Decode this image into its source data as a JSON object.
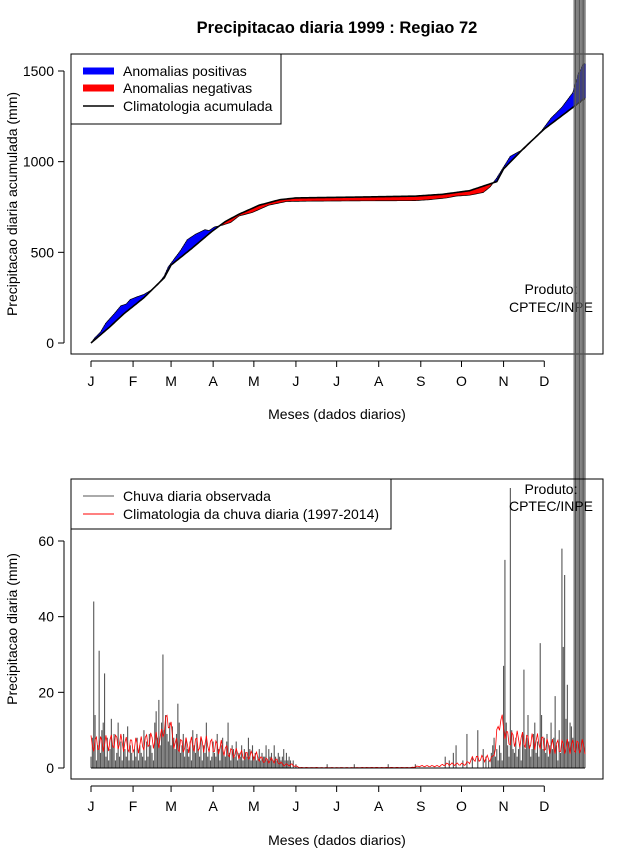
{
  "colors": {
    "positive": "#0000ff",
    "negative": "#ff0000",
    "climatology": "#000000",
    "observed": "#555555",
    "clim_daily": "#ff0000"
  },
  "chart_data": [
    {
      "type": "area",
      "title": "Precipitacao diaria 1999 : Regiao 72",
      "xlabel": "Meses (dados diarios)",
      "ylabel": "Precipitacao diaria acumulada (mm)",
      "x_ticks": [
        "J",
        "F",
        "M",
        "A",
        "M",
        "J",
        "J",
        "A",
        "S",
        "O",
        "N",
        "D"
      ],
      "x_tick_days": [
        1,
        32,
        60,
        91,
        121,
        152,
        182,
        213,
        244,
        274,
        305,
        335
      ],
      "xlim": [
        1,
        365
      ],
      "ylim": [
        0,
        1550
      ],
      "y_ticks": [
        0,
        500,
        1000,
        1500
      ],
      "legend": [
        "Anomalias positivas",
        "Anomalias negativas",
        "Climatologia acumulada"
      ],
      "annotation": [
        "Produto:",
        "CPTEC/INPE"
      ],
      "clim_day": [
        1,
        15,
        25,
        40,
        55,
        60,
        75,
        90,
        100,
        110,
        125,
        140,
        152,
        170,
        200,
        240,
        260,
        280,
        300,
        305,
        320,
        335,
        350,
        365
      ],
      "clim_value": [
        0,
        90,
        160,
        250,
        360,
        430,
        520,
        615,
        670,
        710,
        760,
        790,
        800,
        802,
        805,
        810,
        820,
        840,
        890,
        960,
        1075,
        1180,
        1265,
        1350
      ],
      "observed_day": [
        1,
        4,
        8,
        12,
        18,
        23,
        27,
        30,
        35,
        40,
        45,
        50,
        55,
        58,
        62,
        67,
        72,
        78,
        85,
        88,
        92,
        98,
        104,
        110,
        120,
        132,
        145,
        160,
        200,
        240,
        250,
        263,
        270,
        280,
        290,
        295,
        300,
        305,
        310,
        320,
        333,
        340,
        348,
        352,
        356,
        360,
        364
      ],
      "observed_value": [
        0,
        30,
        60,
        110,
        160,
        205,
        215,
        240,
        255,
        268,
        290,
        320,
        370,
        420,
        460,
        510,
        570,
        600,
        625,
        620,
        640,
        650,
        665,
        700,
        720,
        760,
        780,
        782,
        784,
        785,
        790,
        800,
        810,
        815,
        830,
        860,
        910,
        970,
        1030,
        1070,
        1170,
        1240,
        1300,
        1340,
        1380,
        1480,
        1540
      ]
    },
    {
      "type": "bar",
      "title": "",
      "xlabel": "Meses (dados diarios)",
      "ylabel": "Precipitacao diaria (mm)",
      "x_ticks": [
        "J",
        "F",
        "M",
        "A",
        "M",
        "J",
        "J",
        "A",
        "S",
        "O",
        "N",
        "D"
      ],
      "x_tick_days": [
        1,
        32,
        60,
        91,
        121,
        152,
        182,
        213,
        244,
        274,
        305,
        335
      ],
      "xlim": [
        1,
        365
      ],
      "ylim": [
        0,
        77
      ],
      "y_ticks": [
        0,
        20,
        40,
        60
      ],
      "legend": [
        "Chuva diaria observada",
        "Climatologia da chuva diaria (1997-2014)"
      ],
      "annotation": [
        "Produto:",
        "CPTEC/INPE"
      ],
      "rain_day": [
        1,
        2,
        3,
        4,
        5,
        6,
        7,
        8,
        9,
        10,
        11,
        12,
        13,
        14,
        15,
        16,
        17,
        18,
        19,
        20,
        21,
        22,
        23,
        24,
        25,
        26,
        27,
        28,
        29,
        30,
        31,
        32,
        33,
        34,
        35,
        36,
        37,
        38,
        39,
        40,
        41,
        42,
        43,
        44,
        45,
        46,
        47,
        48,
        49,
        50,
        51,
        52,
        53,
        54,
        55,
        56,
        57,
        58,
        59,
        60,
        61,
        62,
        63,
        64,
        65,
        66,
        67,
        68,
        69,
        70,
        71,
        72,
        73,
        74,
        75,
        76,
        77,
        78,
        79,
        80,
        81,
        82,
        83,
        84,
        85,
        86,
        87,
        88,
        89,
        90,
        91,
        92,
        93,
        94,
        95,
        96,
        97,
        98,
        99,
        100,
        101,
        102,
        103,
        104,
        105,
        106,
        107,
        108,
        109,
        110,
        111,
        112,
        113,
        114,
        115,
        116,
        117,
        118,
        119,
        120,
        121,
        122,
        123,
        124,
        125,
        126,
        127,
        128,
        129,
        130,
        131,
        132,
        133,
        134,
        135,
        136,
        137,
        138,
        139,
        140,
        141,
        142,
        143,
        144,
        145,
        146,
        147,
        148,
        150,
        152,
        175,
        195,
        220,
        240,
        262,
        265,
        268,
        270,
        275,
        278,
        282,
        286,
        290,
        292,
        294,
        296,
        297,
        298,
        299,
        300,
        301,
        302,
        303,
        304,
        305,
        306,
        307,
        308,
        309,
        310,
        311,
        312,
        313,
        314,
        315,
        316,
        317,
        318,
        319,
        320,
        321,
        322,
        323,
        324,
        325,
        326,
        327,
        328,
        329,
        330,
        331,
        332,
        333,
        334,
        335,
        336,
        337,
        338,
        339,
        340,
        341,
        342,
        343,
        344,
        345,
        346,
        347,
        348,
        349,
        350,
        351,
        352,
        353,
        354,
        355,
        356,
        357,
        358,
        359,
        360,
        361,
        362,
        363,
        364,
        365
      ],
      "rain_value": [
        3,
        8,
        44,
        14,
        2,
        6,
        31,
        4,
        10,
        12,
        25,
        3,
        8,
        2,
        5,
        13,
        6,
        9,
        2,
        4,
        12,
        3,
        7,
        2,
        9,
        5,
        3,
        11,
        2,
        6,
        4,
        2,
        5,
        3,
        8,
        2,
        6,
        4,
        3,
        10,
        2,
        7,
        3,
        9,
        6,
        4,
        2,
        12,
        15,
        8,
        18,
        6,
        12,
        30,
        10,
        14,
        9,
        7,
        12,
        6,
        11,
        8,
        5,
        9,
        17,
        12,
        4,
        6,
        9,
        3,
        8,
        5,
        3,
        7,
        2,
        10,
        6,
        4,
        9,
        5,
        3,
        8,
        2,
        6,
        4,
        12,
        3,
        5,
        2,
        3,
        7,
        4,
        3,
        9,
        5,
        2,
        6,
        8,
        4,
        3,
        7,
        12,
        4,
        2,
        6,
        5,
        3,
        7,
        2,
        4,
        3,
        6,
        2,
        5,
        4,
        3,
        8,
        5,
        2,
        6,
        3,
        4,
        2,
        3,
        5,
        2,
        4,
        3,
        3,
        6,
        2,
        5,
        3,
        4,
        2,
        6,
        3,
        2,
        4,
        3,
        2,
        3,
        5,
        2,
        4,
        2,
        3,
        2,
        2,
        1,
        1,
        1,
        1,
        1,
        3,
        2,
        4,
        6,
        2,
        9,
        3,
        10,
        5,
        3,
        2,
        4,
        6,
        8,
        3,
        5,
        2,
        6,
        4,
        2,
        27,
        55,
        12,
        6,
        3,
        74,
        10,
        5,
        4,
        8,
        3,
        5,
        6,
        2,
        9,
        26,
        5,
        8,
        14,
        6,
        3,
        5,
        9,
        12,
        4,
        7,
        3,
        33,
        14,
        5,
        8,
        4,
        9,
        3,
        6,
        12,
        5,
        8,
        19,
        6,
        2,
        10,
        4,
        58,
        32,
        51,
        13,
        22,
        7,
        12,
        11,
        8
      ]
    }
  ]
}
